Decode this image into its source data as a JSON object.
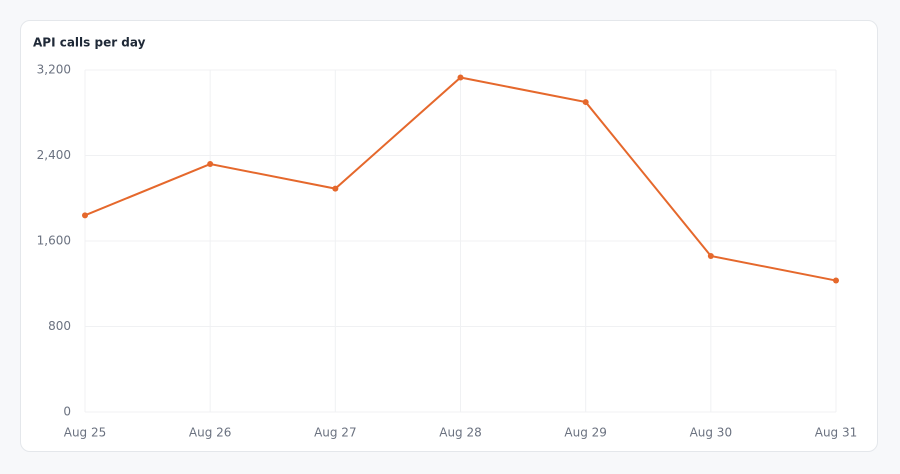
{
  "chart_data": {
    "type": "line",
    "title": "API calls per day",
    "categories": [
      "Aug 25",
      "Aug 26",
      "Aug 27",
      "Aug 28",
      "Aug 29",
      "Aug 30",
      "Aug 31"
    ],
    "series": [
      {
        "name": "API calls",
        "color": "#e5682c",
        "values": [
          1840,
          2320,
          2090,
          3130,
          2900,
          1460,
          1230
        ]
      }
    ],
    "ylim": [
      0,
      3200
    ],
    "yticks": [
      0,
      800,
      {
        "value": 1600,
        "label": "1,600"
      },
      {
        "value": 2400,
        "label": "2,400"
      },
      {
        "value": 3200,
        "label": "3,200"
      }
    ],
    "grid": true
  }
}
